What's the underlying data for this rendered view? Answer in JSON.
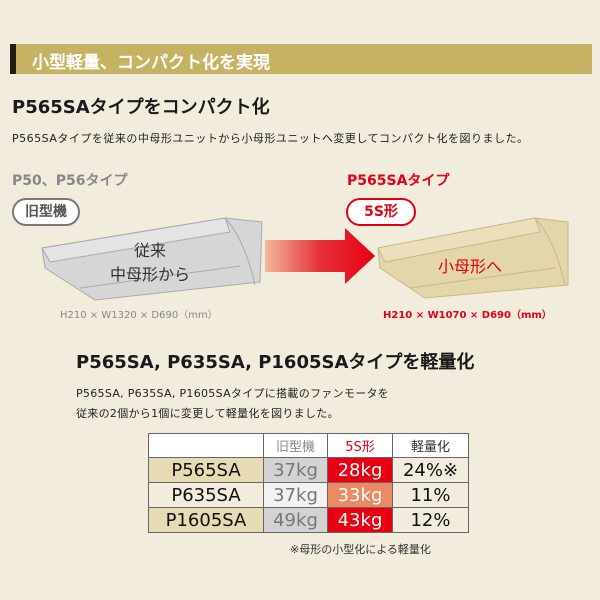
{
  "banner": {
    "title": "小型軽量、コンパクト化を実現"
  },
  "section1": {
    "heading": "P565SAタイプをコンパクト化",
    "description": "P565SAタイプを従来の中母形ユニットから小母形ユニットへ変更してコンパクト化を図りました。",
    "old": {
      "type": "P50、P56タイプ",
      "badge": "旧型機",
      "label_line1": "従来",
      "label_line2": "中母形から",
      "dimensions": "H210 × W1320 × D690（mm）"
    },
    "new": {
      "type": "P565SAタイプ",
      "badge": "5S形",
      "label": "小母形へ",
      "dimensions": "H210 × W1070 × D690（mm）"
    }
  },
  "section2": {
    "heading": "P565SA, P635SA, P1605SAタイプを軽量化",
    "description_line1": "P565SA, P635SA, P1605SAタイプに搭載のファンモータを",
    "description_line2": "従来の2個から1個に変更して軽量化を図りました。",
    "table": {
      "headers": [
        "",
        "旧型機",
        "5S形",
        "軽量化"
      ],
      "rows": [
        {
          "model": "P565SA",
          "old": "37kg",
          "new": "28kg",
          "reduction": "24%※",
          "old_bg": "#d3d3d3",
          "new_bg": "#e60012"
        },
        {
          "model": "P635SA",
          "old": "37kg",
          "new": "33kg",
          "reduction": "11%",
          "old_bg": "#f2f2f2",
          "new_bg": "#ec8a64"
        },
        {
          "model": "P1605SA",
          "old": "49kg",
          "new": "43kg",
          "reduction": "12%",
          "old_bg": "#d3d3d3",
          "new_bg": "#e60012"
        }
      ]
    },
    "note": "※母形の小型化による軽量化"
  },
  "colors": {
    "accent": "#e60012",
    "banner": "#c5b262"
  }
}
